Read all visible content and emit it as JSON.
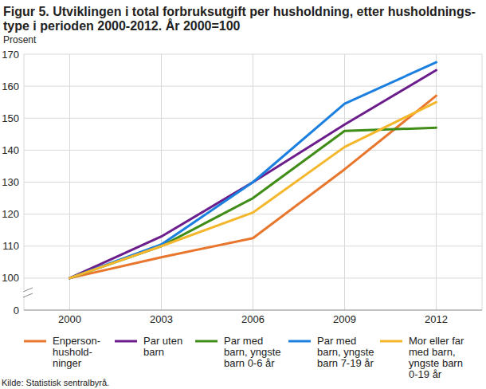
{
  "chart_data": {
    "type": "line",
    "title": "Figur 5. Utviklingen i total forbruksutgift per husholdning, etter husholdnings-\ntype i perioden 2000-2012.  År 2000=100",
    "y_label": "Prosent",
    "source": "Kilde: Statistisk sentralbyrå.",
    "x": [
      2000,
      2003,
      2006,
      2009,
      2012
    ],
    "xlim": [
      1998.5,
      2013.5
    ],
    "xticks": [
      2000,
      2003,
      2006,
      2009,
      2012
    ],
    "ylim": [
      90,
      170
    ],
    "yticks": [
      100,
      110,
      120,
      130,
      140,
      150,
      160,
      170
    ],
    "y_break_tick": 0,
    "grid": true,
    "legend": "bottom",
    "series": [
      {
        "name": "Enperson-\nhushold-\nninger",
        "color": "#e8762d",
        "values": [
          100,
          106.5,
          112.5,
          134,
          157
        ]
      },
      {
        "name": "Par uten\nbarn",
        "color": "#6b1d8c",
        "values": [
          100,
          113,
          130,
          148,
          165
        ]
      },
      {
        "name": "Par med\nbarn, yngste\nbarn 0-6 år",
        "color": "#3f8c17",
        "values": [
          100,
          110,
          125,
          146,
          147
        ]
      },
      {
        "name": "Par med\nbarn, yngste\nbarn 7-19 år",
        "color": "#1b7fe0",
        "values": [
          100,
          110.5,
          130,
          154.5,
          167.5
        ]
      },
      {
        "name": "Mor eller far\nmed barn,\nyngste barn\n0-19 år",
        "color": "#f4b72c",
        "values": [
          100,
          110,
          120.5,
          141,
          155
        ]
      }
    ]
  }
}
